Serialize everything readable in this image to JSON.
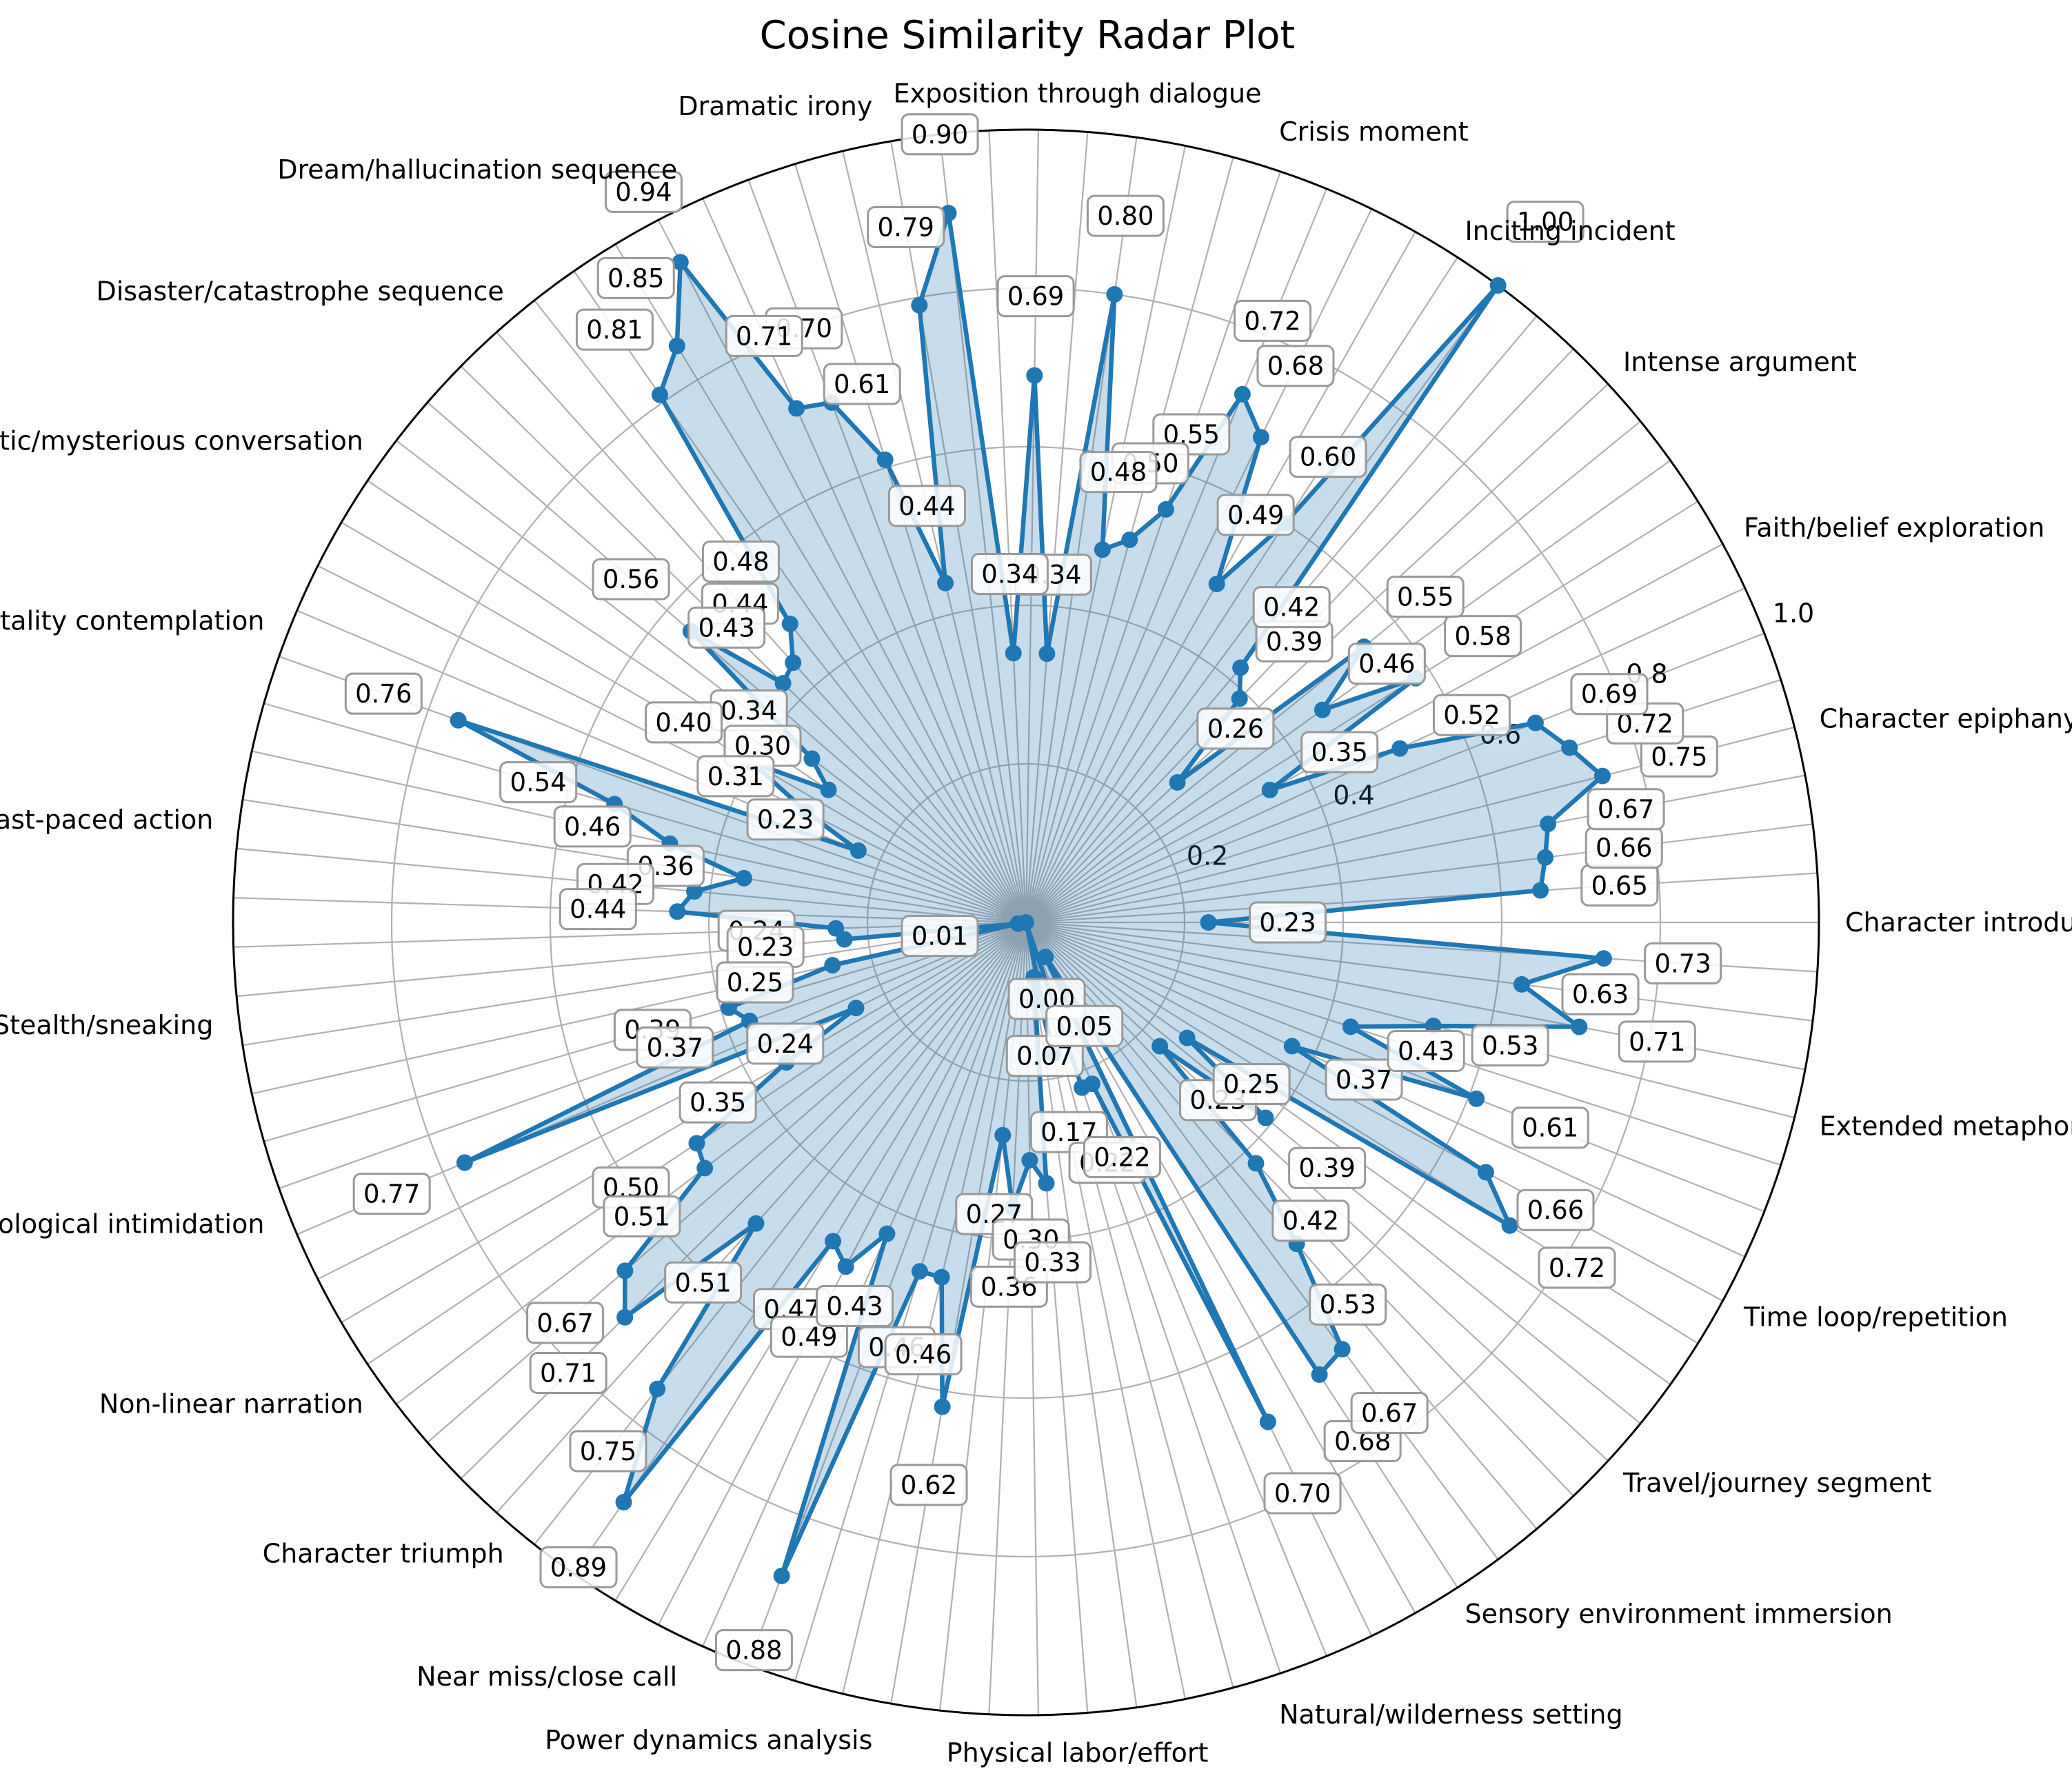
{
  "chart_data": {
    "type": "radar",
    "title": "Cosine Similarity Radar Plot",
    "rlim": [
      0,
      1.0
    ],
    "r_ticks": [
      "0.2",
      "0.4",
      "0.6",
      "0.8",
      "1.0"
    ],
    "r_tick_values": [
      0.2,
      0.4,
      0.6,
      0.8,
      1.0
    ],
    "grid": true,
    "start_angle_deg": 0,
    "direction": "counterclockwise",
    "category_labels": [
      "Character introduction",
      "Character epiphany/realization",
      "Faith/belief exploration",
      "Intense argument",
      "Inciting incident",
      "Crisis moment",
      "Exposition through dialogue",
      "Dramatic irony",
      "Dream/hallucination sequence",
      "Disaster/catastrophe sequence",
      "Cryptic/mysterious conversation",
      "Death/mortality contemplation",
      "Fast-paced action",
      "Stealth/sneaking",
      "Psychological intimidation",
      "Non-linear narration",
      "Character triumph",
      "Near miss/close call",
      "Power dynamics analysis",
      "Physical labor/effort",
      "Natural/wilderness setting",
      "Sensory environment immersion",
      "Travel/journey segment",
      "Time loop/repetition",
      "Extended metaphor"
    ],
    "values": [
      0.23,
      0.65,
      0.66,
      0.67,
      0.75,
      0.72,
      0.69,
      0.52,
      0.35,
      0.58,
      0.46,
      0.55,
      0.26,
      0.39,
      0.42,
      1.0,
      0.6,
      0.49,
      0.68,
      0.72,
      0.55,
      0.5,
      0.48,
      0.8,
      0.34,
      0.69,
      0.34,
      0.9,
      0.79,
      0.44,
      0.61,
      0.7,
      0.71,
      0.94,
      0.85,
      0.81,
      0.48,
      0.44,
      0.43,
      0.56,
      0.34,
      0.3,
      0.4,
      0.31,
      0.23,
      0.76,
      0.54,
      0.46,
      0.36,
      0.42,
      0.44,
      0.24,
      0.23,
      0.01,
      0.25,
      0.39,
      0.37,
      0.77,
      0.24,
      0.35,
      0.5,
      0.51,
      0.67,
      0.71,
      0.51,
      0.75,
      0.89,
      0.47,
      0.49,
      0.43,
      0.88,
      0.46,
      0.46,
      0.62,
      0.27,
      0.36,
      0.3,
      0.33,
      0.07,
      0.17,
      0.0,
      0.22,
      0.22,
      0.7,
      0.05,
      0.68,
      0.67,
      0.53,
      0.42,
      0.23,
      0.39,
      0.25,
      0.72,
      0.66,
      0.37,
      0.61,
      0.43,
      0.53,
      0.71,
      0.63,
      0.73
    ],
    "value_labels": [
      "0.23",
      "0.65",
      "0.66",
      "0.67",
      "0.75",
      "0.72",
      "0.69",
      "0.52",
      "0.35",
      "0.58",
      "0.46",
      "0.55",
      "0.26",
      "0.39",
      "0.42",
      "1.00",
      "0.60",
      "0.49",
      "0.68",
      "0.72",
      "0.55",
      "0.50",
      "0.48",
      "0.80",
      "0.34",
      "0.69",
      "0.34",
      "0.90",
      "0.79",
      "0.44",
      "0.61",
      "0.70",
      "0.71",
      "0.94",
      "0.85",
      "0.81",
      "0.48",
      "0.44",
      "0.43",
      "0.56",
      "0.34",
      "0.30",
      "0.40",
      "0.31",
      "0.23",
      "0.76",
      "0.54",
      "0.46",
      "0.36",
      "0.42",
      "0.44",
      "0.24",
      "0.23",
      "0.01",
      "0.25",
      "0.39",
      "0.37",
      "0.77",
      "0.24",
      "0.35",
      "0.50",
      "0.51",
      "0.67",
      "0.71",
      "0.51",
      "0.75",
      "0.89",
      "0.47",
      "0.49",
      "0.43",
      "0.88",
      "0.46",
      "0.46",
      "0.62",
      "0.27",
      "0.36",
      "0.30",
      "0.33",
      "0.07",
      "0.17",
      "0.00",
      "0.22",
      "0.22",
      "0.70",
      "0.05",
      "0.68",
      "0.67",
      "0.53",
      "0.42",
      "0.23",
      "0.39",
      "0.25",
      "0.72",
      "0.66",
      "0.37",
      "0.61",
      "0.43",
      "0.53",
      "0.71",
      "0.63",
      "0.73"
    ],
    "colors": {
      "line": "#1f77b4",
      "fill": "#1f77b4",
      "fill_opacity": 0.25,
      "grid": "#b0b0b0",
      "frame": "#000000",
      "label_box_edge": "#999999"
    }
  }
}
